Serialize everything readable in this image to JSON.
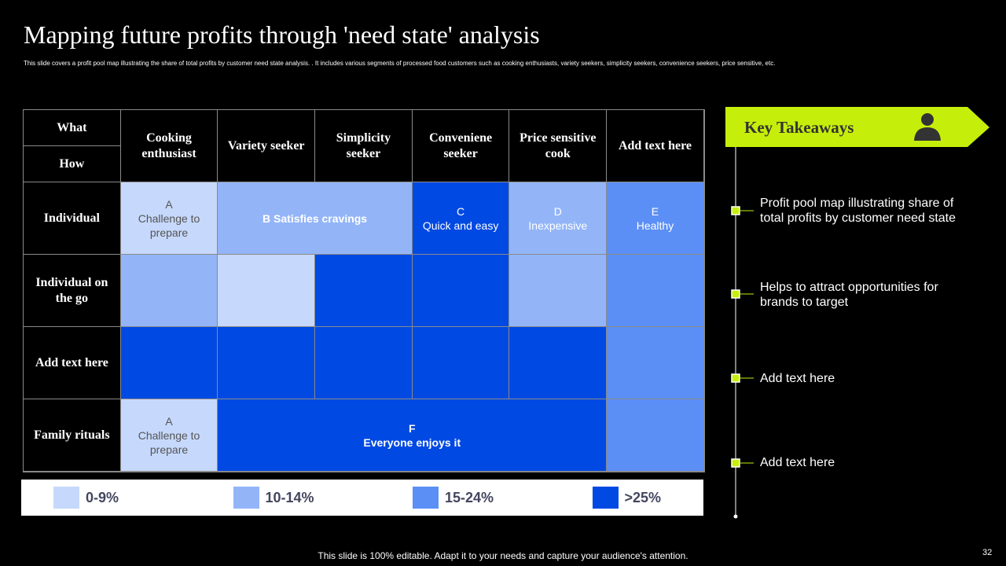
{
  "header": {
    "title": "Mapping future profits through 'need state' analysis",
    "subtitle": "This slide covers a profit pool map illustrating the share of total profits by customer need state analysis. . It includes various segments of processed food customers such as cooking enthusiasts, variety seekers, simplicity seekers, convenience seekers, price sensitive, etc."
  },
  "table": {
    "corner": [
      "What",
      "How"
    ],
    "columns": [
      "Cooking enthusiast",
      "Variety seeker",
      "Simplicity seeker",
      "Conveniene seeker",
      "Price sensitive cook",
      "Add text here"
    ],
    "rows": [
      {
        "label": "Individual",
        "cells": [
          {
            "color": "#c6d8fb",
            "letter": "A",
            "text": "Challenge to prepare",
            "text_color": "#555555"
          },
          {
            "color": "#93b5f8",
            "span": 2,
            "text": "B Satisfies cravings",
            "bold": true,
            "text_color": "#ffffff"
          },
          {
            "color": "#0049e3",
            "letter": "C",
            "text": "Quick and easy",
            "text_color": "#ffffff"
          },
          {
            "color": "#93b5f8",
            "letter": "D",
            "text": "Inexpensive",
            "text_color": "#ffffff"
          },
          {
            "color": "#5b8ff5",
            "letter": "E",
            "text": "Healthy",
            "text_color": "#ffffff"
          }
        ]
      },
      {
        "label": "Individual on the go",
        "cells": [
          {
            "color": "#93b5f8"
          },
          {
            "color": "#c6d8fb"
          },
          {
            "color": "#0049e3"
          },
          {
            "color": "#0049e3"
          },
          {
            "color": "#93b5f8"
          },
          {
            "color": "#5b8ff5"
          }
        ]
      },
      {
        "label": "Add text here",
        "cells": [
          {
            "color": "#0049e3"
          },
          {
            "color": "#0049e3"
          },
          {
            "color": "#0049e3"
          },
          {
            "color": "#0049e3"
          },
          {
            "color": "#0049e3"
          },
          {
            "color": "#5b8ff5"
          }
        ]
      },
      {
        "label": "Family rituals",
        "cells": [
          {
            "color": "#c6d8fb",
            "letter": "A",
            "text": "Challenge to prepare",
            "text_color": "#555555"
          },
          {
            "color": "#0049e3",
            "span": 4,
            "letter": "F",
            "text": "Everyone enjoys it",
            "bold": true,
            "text_color": "#ffffff"
          },
          {
            "color": "#5b8ff5"
          }
        ]
      }
    ]
  },
  "legend": [
    {
      "label": "0-9%",
      "color": "#c6d8fb"
    },
    {
      "label": "10-14%",
      "color": "#93b5f8"
    },
    {
      "label": "15-24%",
      "color": "#5b8ff5"
    },
    {
      "label": ">25%",
      "color": "#0049e3"
    }
  ],
  "takeaways": {
    "title": "Key Takeaways",
    "items": [
      "Profit pool map illustrating share of total profits by customer need state",
      "Helps to attract opportunities for brands to target",
      "Add text here",
      "Add text here"
    ]
  },
  "footer": {
    "note": "This slide is 100% editable. Adapt it to your needs and capture your audience's attention.",
    "page": "32"
  }
}
